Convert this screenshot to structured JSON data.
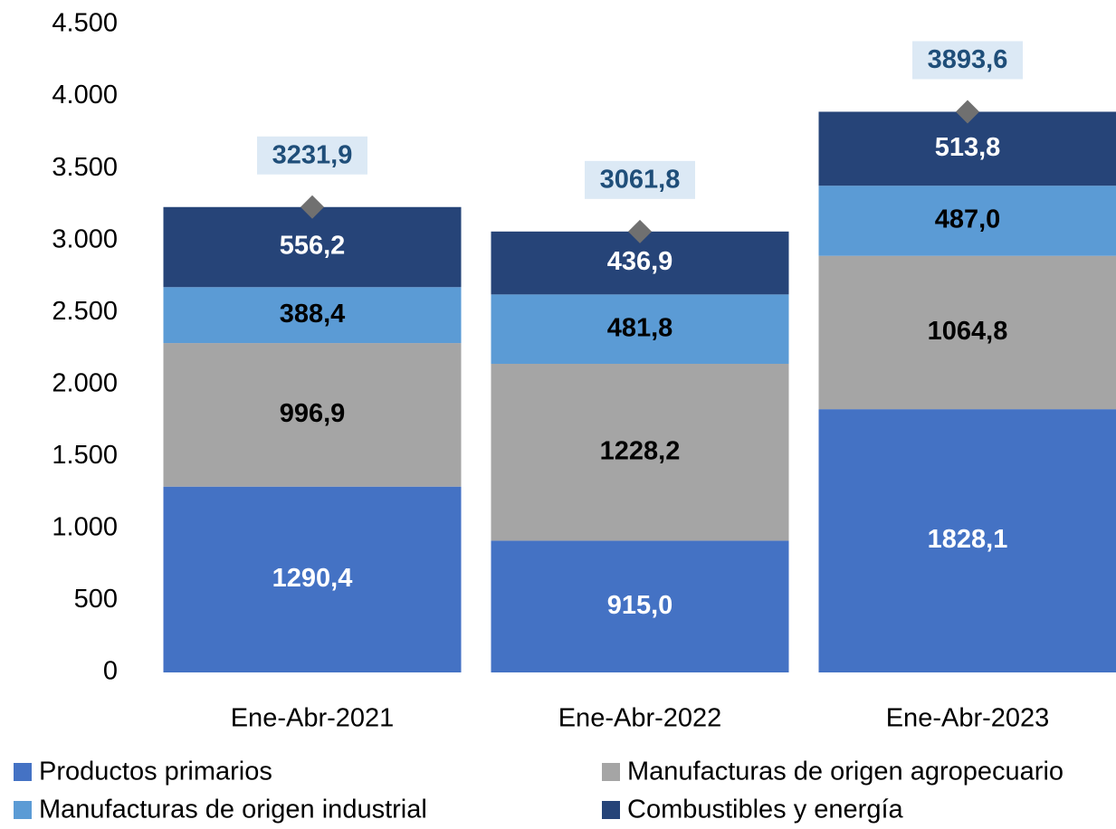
{
  "chart_data": {
    "type": "stacked-bar",
    "categories": [
      "Ene-Abr-2021",
      "Ene-Abr-2022",
      "Ene-Abr-2023"
    ],
    "series": [
      {
        "name": "Productos primarios",
        "color": "#4472c4",
        "label_color": "#ffffff",
        "values": [
          1290.4,
          915.0,
          1828.1
        ],
        "value_labels": [
          "1290,4",
          "915,0",
          "1828,1"
        ]
      },
      {
        "name": "Manufacturas de origen agropecuario",
        "color": "#a5a5a5",
        "label_color": "#000000",
        "values": [
          996.9,
          1228.2,
          1064.8
        ],
        "value_labels": [
          "996,9",
          "1228,2",
          "1064,8"
        ]
      },
      {
        "name": "Manufacturas de origen industrial",
        "color": "#5b9bd5",
        "label_color": "#000000",
        "values": [
          388.4,
          481.8,
          487.0
        ],
        "value_labels": [
          "388,4",
          "481,8",
          "487,0"
        ]
      },
      {
        "name": "Combustibles y energía",
        "color": "#264478",
        "label_color": "#ffffff",
        "values": [
          556.2,
          436.9,
          513.8
        ],
        "value_labels": [
          "556,2",
          "436,9",
          "513,8"
        ]
      }
    ],
    "totals": {
      "color": "#707070",
      "values": [
        3231.9,
        3061.8,
        3893.6
      ],
      "value_labels": [
        "3231,9",
        "3061,8",
        "3893,6"
      ]
    },
    "ylim": [
      0,
      4500
    ],
    "yticks": [
      0,
      500,
      {
        "value": 1000,
        "label": "1.000"
      },
      {
        "value": 1500,
        "label": "1.500"
      },
      {
        "value": 2000,
        "label": "2.000"
      },
      {
        "value": 2500,
        "label": "2.500"
      },
      {
        "value": 3000,
        "label": "3.000"
      },
      {
        "value": 3500,
        "label": "3.500"
      },
      {
        "value": 4000,
        "label": "4.000"
      },
      {
        "value": 4500,
        "label": "4.500"
      }
    ],
    "grid": false,
    "legend": "bottom"
  }
}
